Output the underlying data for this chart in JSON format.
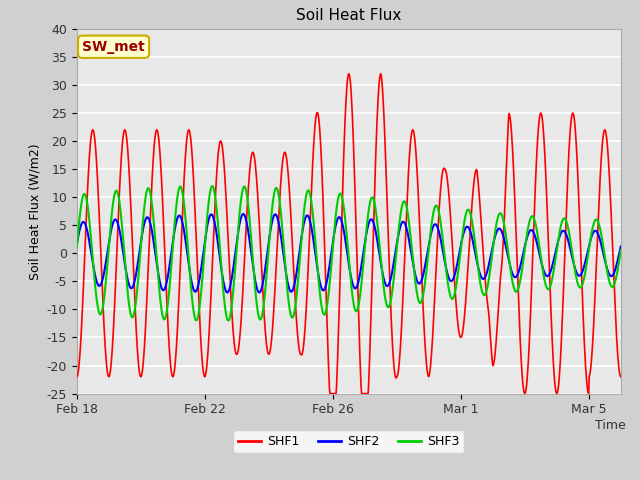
{
  "title": "Soil Heat Flux",
  "ylabel": "Soil Heat Flux (W/m2)",
  "xlabel": "Time",
  "ylim": [
    -25,
    40
  ],
  "bg_color": "#e8e8e8",
  "grid_color": "white",
  "series": [
    "SHF1",
    "SHF2",
    "SHF3"
  ],
  "colors": [
    "#ff0000",
    "#0000ff",
    "#00cc00"
  ],
  "linewidths": [
    1.2,
    1.5,
    1.5
  ],
  "legend_label": "SW_met",
  "legend_bg": "#ffffcc",
  "legend_edge": "#ccaa00",
  "legend_text_color": "#990000",
  "xtick_labels": [
    "Feb 18",
    "Feb 22",
    "Feb 26",
    "Mar 1",
    "Mar 5"
  ],
  "yticks": [
    -25,
    -20,
    -15,
    -10,
    -5,
    0,
    5,
    10,
    15,
    20,
    25,
    30,
    35,
    40
  ]
}
